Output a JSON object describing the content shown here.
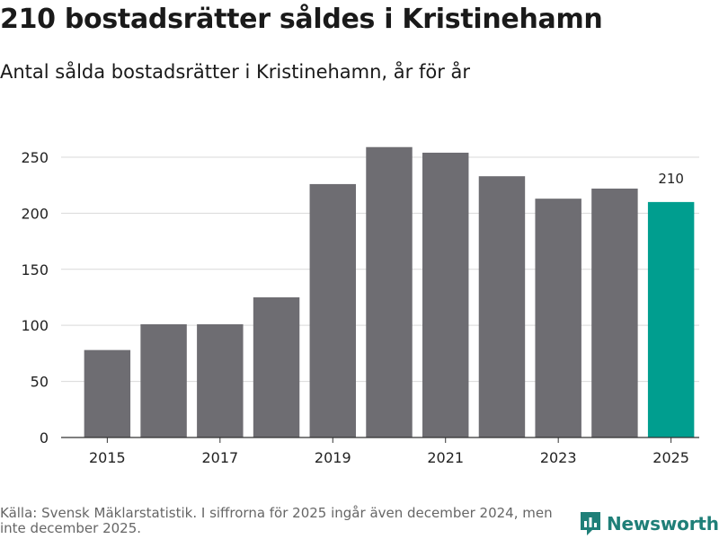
{
  "header": {
    "title": "210 bostadsrätter såldes i Kristinehamn",
    "subtitle": "Antal sålda bostadsrätter i Kristinehamn, år för år"
  },
  "chart_data": {
    "type": "bar",
    "title": "210 bostadsrätter såldes i Kristinehamn",
    "subtitle": "Antal sålda bostadsrätter i Kristinehamn, år för år",
    "xlabel": "",
    "ylabel": "",
    "categories": [
      "2015",
      "2016",
      "2017",
      "2018",
      "2019",
      "2020",
      "2021",
      "2022",
      "2023",
      "2024",
      "2025"
    ],
    "values": [
      78,
      101,
      101,
      125,
      226,
      259,
      254,
      233,
      213,
      222,
      210
    ],
    "x_tick_labels": [
      "2015",
      "2017",
      "2019",
      "2021",
      "2023",
      "2025"
    ],
    "y_ticks": [
      0,
      50,
      100,
      150,
      200,
      250
    ],
    "ylim": [
      0,
      270
    ],
    "grid": true,
    "bar_color": "#6e6d72",
    "highlight_color": "#009e8f",
    "highlight_index": 10,
    "annotations": [
      {
        "category": "2025",
        "text": "210"
      }
    ]
  },
  "footer": {
    "source": "Källa: Svensk Mäklarstatistik. I siffrorna för 2025 ingår även december 2024, men inte december 2025."
  },
  "brand": {
    "name": "Newsworthy",
    "color": "#1f7f78"
  }
}
